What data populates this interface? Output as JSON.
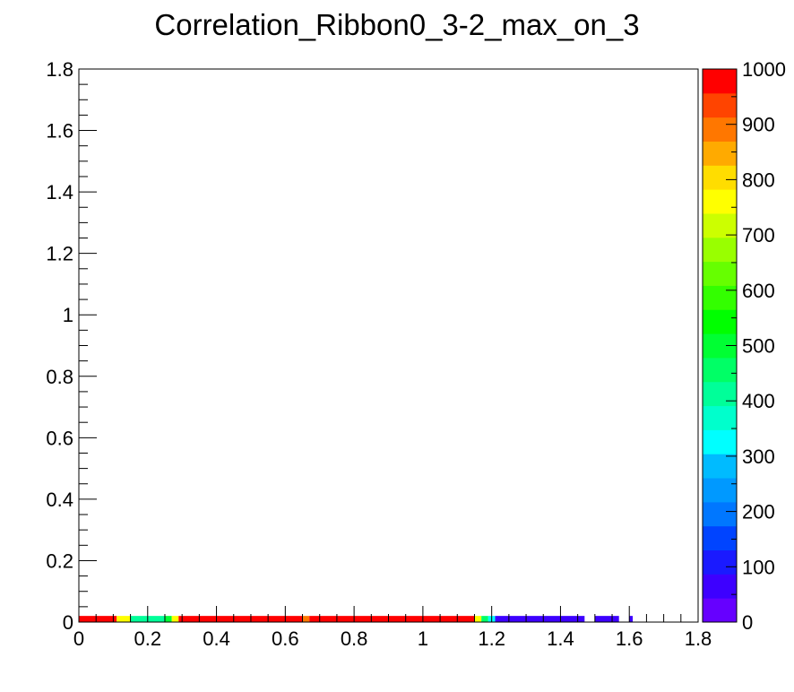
{
  "chart_data": {
    "type": "heatmap",
    "title": "Correlation_Ribbon0_3-2_max_on_3",
    "xlabel": "",
    "ylabel": "",
    "xlim": [
      0,
      1.8
    ],
    "ylim": [
      0,
      1.8
    ],
    "x_ticks": [
      "0",
      "0.2",
      "0.4",
      "0.6",
      "0.8",
      "1",
      "1.2",
      "1.4",
      "1.6",
      "1.8"
    ],
    "y_ticks": [
      "0",
      "0.2",
      "0.4",
      "0.6",
      "0.8",
      "1",
      "1.2",
      "1.4",
      "1.6",
      "1.8"
    ],
    "z_range": [
      0,
      1000
    ],
    "z_ticks": [
      "0",
      "100",
      "200",
      "300",
      "400",
      "500",
      "600",
      "700",
      "800",
      "900",
      "1000"
    ],
    "bin_width": 0.02,
    "y_bin": [
      0,
      0.02
    ],
    "cells": [
      {
        "x0": 0.0,
        "x1": 0.11,
        "z": 1000
      },
      {
        "x0": 0.11,
        "x1": 0.15,
        "z": 760
      },
      {
        "x0": 0.15,
        "x1": 0.2,
        "z": 420
      },
      {
        "x0": 0.2,
        "x1": 0.25,
        "z": 400
      },
      {
        "x0": 0.25,
        "x1": 0.27,
        "z": 500
      },
      {
        "x0": 0.27,
        "x1": 0.29,
        "z": 780
      },
      {
        "x0": 0.29,
        "x1": 0.65,
        "z": 1000
      },
      {
        "x0": 0.65,
        "x1": 0.67,
        "z": 900
      },
      {
        "x0": 0.67,
        "x1": 1.15,
        "z": 1000
      },
      {
        "x0": 1.15,
        "x1": 1.17,
        "z": 760
      },
      {
        "x0": 1.17,
        "x1": 1.19,
        "z": 450
      },
      {
        "x0": 1.19,
        "x1": 1.21,
        "z": 330
      },
      {
        "x0": 1.21,
        "x1": 1.47,
        "z": 80
      },
      {
        "x0": 1.5,
        "x1": 1.57,
        "z": 80
      },
      {
        "x0": 1.6,
        "x1": 1.61,
        "z": 80
      }
    ],
    "palette": [
      "#6600ff",
      "#3d00ff",
      "#1a1aff",
      "#0044ff",
      "#0077ff",
      "#0099ff",
      "#00bbff",
      "#00ffff",
      "#00ffcc",
      "#00ff99",
      "#00ff66",
      "#00ff33",
      "#00ff00",
      "#33ff00",
      "#66ff00",
      "#99ff00",
      "#ccff00",
      "#ffff00",
      "#ffdd00",
      "#ffaa00",
      "#ff7700",
      "#ff4400",
      "#ff0000"
    ],
    "grid": false,
    "legend": "colorbar-right"
  }
}
